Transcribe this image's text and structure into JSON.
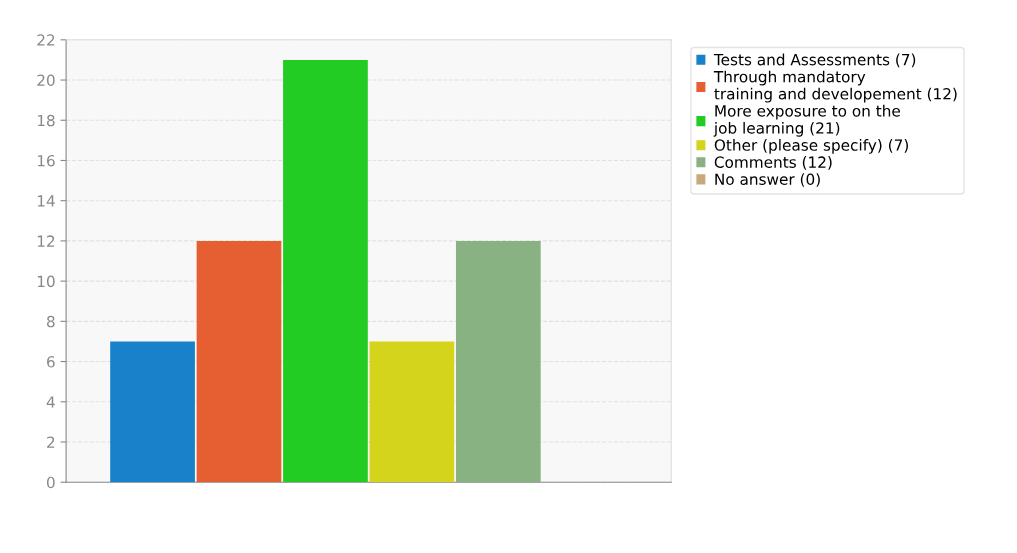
{
  "chart_data": {
    "type": "bar",
    "categories": [
      null,
      null,
      null,
      null,
      null,
      null
    ],
    "series": [
      {
        "name": "Tests and Assessments (7)",
        "color": "#1782c9",
        "values": [
          7,
          null,
          null,
          null,
          null,
          null
        ]
      },
      {
        "name": "Through mandatory\ntraining and developement (12)",
        "color": "#e55f33",
        "values": [
          null,
          12,
          null,
          null,
          null,
          null
        ]
      },
      {
        "name": "More exposure to on the\njob learning (21)",
        "color": "#22cc22",
        "values": [
          null,
          null,
          21,
          null,
          null,
          null
        ]
      },
      {
        "name": "Other (please specify) (7)",
        "color": "#d4d41d",
        "values": [
          null,
          null,
          null,
          7,
          null,
          null
        ]
      },
      {
        "name": "Comments (12)",
        "color": "#89b282",
        "values": [
          null,
          null,
          null,
          null,
          12,
          null
        ]
      },
      {
        "name": "No answer (0)",
        "color": "#c9a97c",
        "values": [
          null,
          null,
          null,
          null,
          null,
          0
        ]
      }
    ],
    "ylim": [
      0,
      22
    ],
    "yticks": [
      0,
      2,
      4,
      6,
      8,
      10,
      12,
      14,
      16,
      18,
      20,
      22
    ],
    "grid": "y",
    "legend": "top right"
  }
}
